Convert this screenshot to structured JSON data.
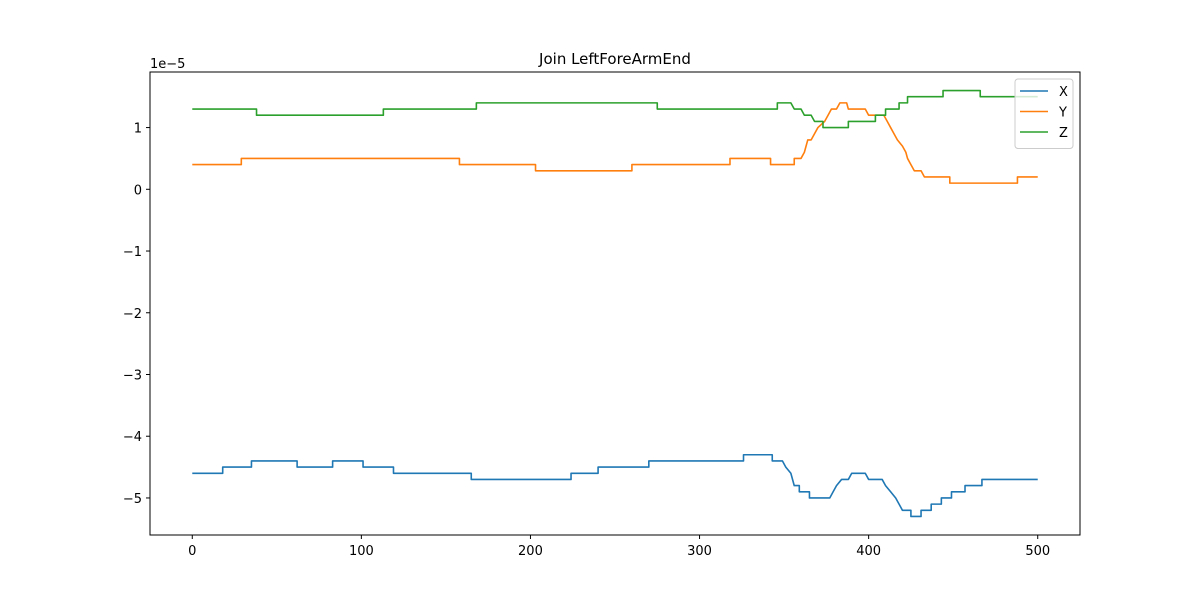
{
  "chart_data": {
    "type": "line",
    "title": "Join LeftForeArmEnd",
    "xlabel": "",
    "ylabel": "",
    "y_offset_label": "1e−5",
    "xlim": [
      -25,
      525
    ],
    "ylim": [
      -5.6,
      1.9
    ],
    "x_ticks": [
      0,
      100,
      200,
      300,
      400,
      500
    ],
    "y_ticks": [
      -5,
      -4,
      -3,
      -2,
      -1,
      0,
      1
    ],
    "y_tick_labels": [
      "−5",
      "−4",
      "−3",
      "−2",
      "−1",
      "0",
      "1"
    ],
    "x_tick_labels": [
      "0",
      "100",
      "200",
      "300",
      "400",
      "500"
    ],
    "grid": false,
    "legend_position": "top-right",
    "series": [
      {
        "name": "X",
        "color": "#1f77b4",
        "points": [
          [
            0,
            -4.6
          ],
          [
            18,
            -4.6
          ],
          [
            18,
            -4.5
          ],
          [
            35,
            -4.5
          ],
          [
            35,
            -4.4
          ],
          [
            62,
            -4.4
          ],
          [
            62,
            -4.5
          ],
          [
            83,
            -4.5
          ],
          [
            83,
            -4.4
          ],
          [
            101,
            -4.4
          ],
          [
            101,
            -4.5
          ],
          [
            119,
            -4.5
          ],
          [
            119,
            -4.6
          ],
          [
            165,
            -4.6
          ],
          [
            165,
            -4.7
          ],
          [
            224,
            -4.7
          ],
          [
            224,
            -4.6
          ],
          [
            240,
            -4.6
          ],
          [
            240,
            -4.5
          ],
          [
            270,
            -4.5
          ],
          [
            270,
            -4.4
          ],
          [
            326,
            -4.4
          ],
          [
            326,
            -4.3
          ],
          [
            343,
            -4.3
          ],
          [
            343,
            -4.4
          ],
          [
            349,
            -4.4
          ],
          [
            351,
            -4.5
          ],
          [
            354,
            -4.6
          ],
          [
            356,
            -4.8
          ],
          [
            359,
            -4.8
          ],
          [
            359,
            -4.9
          ],
          [
            365,
            -4.9
          ],
          [
            365,
            -5.0
          ],
          [
            377,
            -5.0
          ],
          [
            379,
            -4.9
          ],
          [
            381,
            -4.8
          ],
          [
            384,
            -4.7
          ],
          [
            388,
            -4.7
          ],
          [
            390,
            -4.6
          ],
          [
            398,
            -4.6
          ],
          [
            400,
            -4.7
          ],
          [
            408,
            -4.7
          ],
          [
            410,
            -4.8
          ],
          [
            413,
            -4.9
          ],
          [
            416,
            -5.0
          ],
          [
            418,
            -5.1
          ],
          [
            420,
            -5.2
          ],
          [
            425,
            -5.2
          ],
          [
            425,
            -5.3
          ],
          [
            431,
            -5.3
          ],
          [
            431,
            -5.2
          ],
          [
            437,
            -5.2
          ],
          [
            437,
            -5.1
          ],
          [
            443,
            -5.1
          ],
          [
            443,
            -5.0
          ],
          [
            449,
            -5.0
          ],
          [
            449,
            -4.9
          ],
          [
            457,
            -4.9
          ],
          [
            457,
            -4.8
          ],
          [
            467,
            -4.8
          ],
          [
            467,
            -4.7
          ],
          [
            500,
            -4.7
          ]
        ]
      },
      {
        "name": "Y",
        "color": "#ff7f0e",
        "points": [
          [
            0,
            0.4
          ],
          [
            29,
            0.4
          ],
          [
            29,
            0.5
          ],
          [
            158,
            0.5
          ],
          [
            158,
            0.4
          ],
          [
            203,
            0.4
          ],
          [
            203,
            0.3
          ],
          [
            260,
            0.3
          ],
          [
            260,
            0.4
          ],
          [
            318,
            0.4
          ],
          [
            318,
            0.5
          ],
          [
            342,
            0.5
          ],
          [
            342,
            0.4
          ],
          [
            356,
            0.4
          ],
          [
            356,
            0.5
          ],
          [
            360,
            0.5
          ],
          [
            362,
            0.6
          ],
          [
            364,
            0.8
          ],
          [
            366,
            0.8
          ],
          [
            368,
            0.9
          ],
          [
            370,
            1.0
          ],
          [
            374,
            1.1
          ],
          [
            376,
            1.2
          ],
          [
            378,
            1.3
          ],
          [
            381,
            1.3
          ],
          [
            383,
            1.4
          ],
          [
            387,
            1.4
          ],
          [
            388,
            1.3
          ],
          [
            398,
            1.3
          ],
          [
            400,
            1.2
          ],
          [
            409,
            1.2
          ],
          [
            411,
            1.1
          ],
          [
            413,
            1.0
          ],
          [
            415,
            0.9
          ],
          [
            417,
            0.8
          ],
          [
            420,
            0.7
          ],
          [
            422,
            0.6
          ],
          [
            423,
            0.5
          ],
          [
            425,
            0.4
          ],
          [
            427,
            0.3
          ],
          [
            431,
            0.3
          ],
          [
            433,
            0.2
          ],
          [
            448,
            0.2
          ],
          [
            448,
            0.1
          ],
          [
            488,
            0.1
          ],
          [
            488,
            0.2
          ],
          [
            500,
            0.2
          ]
        ]
      },
      {
        "name": "Z",
        "color": "#2ca02c",
        "points": [
          [
            0,
            1.3
          ],
          [
            38,
            1.3
          ],
          [
            38,
            1.2
          ],
          [
            113,
            1.2
          ],
          [
            113,
            1.3
          ],
          [
            168,
            1.3
          ],
          [
            168,
            1.4
          ],
          [
            275,
            1.4
          ],
          [
            275,
            1.3
          ],
          [
            346,
            1.3
          ],
          [
            346,
            1.4
          ],
          [
            354,
            1.4
          ],
          [
            356,
            1.3
          ],
          [
            360,
            1.3
          ],
          [
            362,
            1.2
          ],
          [
            366,
            1.2
          ],
          [
            368,
            1.1
          ],
          [
            373,
            1.1
          ],
          [
            373,
            1.0
          ],
          [
            388,
            1.0
          ],
          [
            388,
            1.1
          ],
          [
            404,
            1.1
          ],
          [
            404,
            1.2
          ],
          [
            410,
            1.2
          ],
          [
            410,
            1.3
          ],
          [
            418,
            1.3
          ],
          [
            418,
            1.4
          ],
          [
            423,
            1.4
          ],
          [
            423,
            1.5
          ],
          [
            444,
            1.5
          ],
          [
            444,
            1.6
          ],
          [
            466,
            1.6
          ],
          [
            466,
            1.5
          ],
          [
            500,
            1.5
          ]
        ]
      }
    ]
  }
}
